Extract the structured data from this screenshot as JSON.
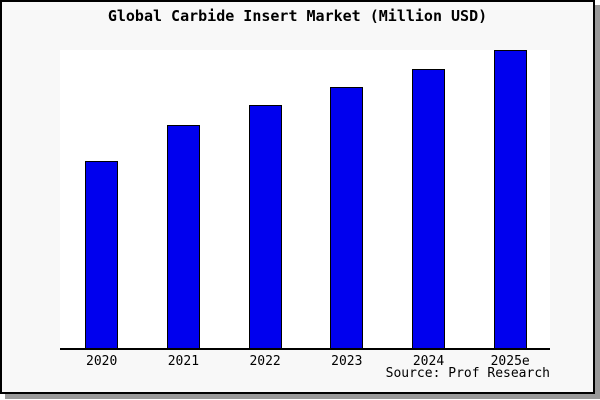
{
  "title": "Global Carbide Insert Market (Million USD)",
  "source": "Source: Prof Research",
  "colors": {
    "panel_background": "#f8f8f8",
    "plot_background": "#ffffff",
    "bar_fill": "#0000ee",
    "bar_edge": "#000000",
    "panel_border": "#000000",
    "panel_shadow": "#999999",
    "text": "#000000"
  },
  "chart_data": {
    "type": "bar",
    "title": "Global Carbide Insert Market (Million USD)",
    "categories": [
      "2020",
      "2021",
      "2022",
      "2023",
      "2024",
      "2025e"
    ],
    "values": [
      62.6,
      75.0,
      81.5,
      87.7,
      93.7,
      100.0
    ],
    "values_estimated": true,
    "xlabel": "",
    "ylabel": "",
    "ylim": [
      0,
      100
    ],
    "y_axis_visible": false,
    "gridlines": false,
    "legend": "none",
    "annotation": "Source: Prof Research"
  }
}
